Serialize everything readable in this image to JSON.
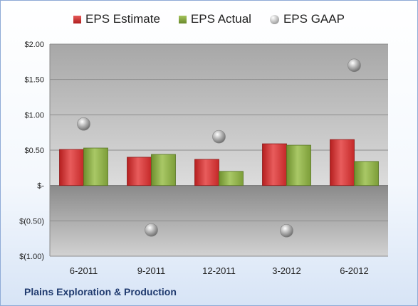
{
  "chart_data": {
    "type": "bar",
    "categories": [
      "6-2011",
      "9-2011",
      "12-2011",
      "3-2012",
      "6-2012"
    ],
    "series": [
      {
        "name": "EPS Estimate",
        "kind": "bar",
        "color": "#d32b2b",
        "values": [
          0.51,
          0.4,
          0.37,
          0.59,
          0.65
        ]
      },
      {
        "name": "EPS Actual",
        "kind": "bar",
        "color": "#83a53c",
        "values": [
          0.53,
          0.44,
          0.2,
          0.57,
          0.34
        ]
      },
      {
        "name": "EPS GAAP",
        "kind": "marker",
        "color": "#a0a0a0",
        "values": [
          0.87,
          -0.63,
          0.69,
          -0.64,
          1.7
        ]
      }
    ],
    "y_ticks": [
      "$2.00",
      "$1.50",
      "$1.00",
      "$0.50",
      "$-",
      "$(0.50)",
      "$(1.00)"
    ],
    "y_tick_values": [
      2.0,
      1.5,
      1.0,
      0.5,
      0.0,
      -0.5,
      -1.0
    ],
    "ylim": [
      -1.0,
      2.0
    ],
    "legend_position": "top",
    "grid": true
  },
  "footer": {
    "company": "Plains Exploration & Production"
  }
}
